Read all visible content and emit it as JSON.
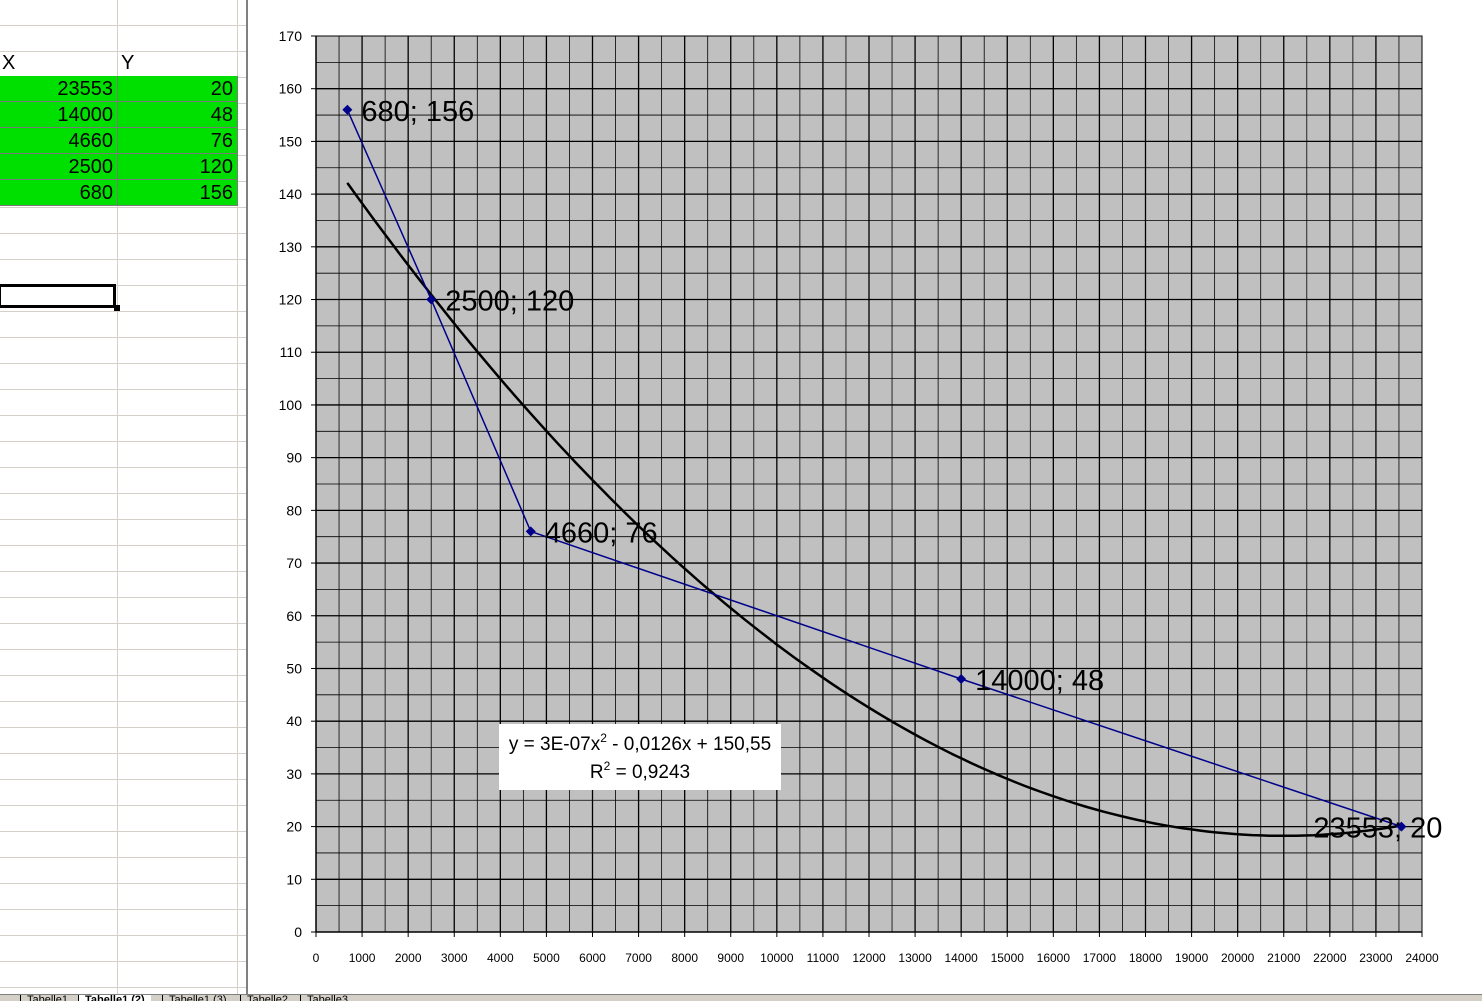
{
  "sheet": {
    "col_x_header": "X",
    "col_y_header": "Y",
    "rows": [
      {
        "x": "23553",
        "y": "20"
      },
      {
        "x": "14000",
        "y": "48"
      },
      {
        "x": "4660",
        "y": "76"
      },
      {
        "x": "2500",
        "y": "120"
      },
      {
        "x": "680",
        "y": "156"
      }
    ],
    "cell_color": "#00e000"
  },
  "tabs": [
    "Tabelle1",
    "Tabelle1 (2)",
    "Tabelle1 (3)",
    "Tabelle2",
    "Tabelle3"
  ],
  "chart_data": {
    "type": "scatter",
    "xlim": [
      0,
      24000
    ],
    "ylim": [
      0,
      170
    ],
    "x_ticks": [
      0,
      1000,
      2000,
      3000,
      4000,
      5000,
      6000,
      7000,
      8000,
      9000,
      10000,
      11000,
      12000,
      13000,
      14000,
      15000,
      16000,
      17000,
      18000,
      19000,
      20000,
      21000,
      22000,
      23000,
      24000
    ],
    "y_ticks": [
      0,
      10,
      20,
      30,
      40,
      50,
      60,
      70,
      80,
      90,
      100,
      110,
      120,
      130,
      140,
      150,
      160,
      170
    ],
    "grid": true,
    "plot_background": "#c0c0c0",
    "series": [
      {
        "color": "#00008b",
        "points": [
          {
            "x": 680,
            "y": 156,
            "label": "680; 156"
          },
          {
            "x": 2500,
            "y": 120,
            "label": "2500; 120"
          },
          {
            "x": 4660,
            "y": 76,
            "label": "4660; 76"
          },
          {
            "x": 14000,
            "y": 48,
            "label": "14000; 48"
          },
          {
            "x": 23553,
            "y": 20,
            "label": "23553; 20"
          }
        ]
      }
    ],
    "trendline": {
      "type": "polynomial",
      "color": "#000000",
      "coefficients": {
        "a": 3e-07,
        "b": -0.0126,
        "c": 150.55
      },
      "x_range": [
        680,
        23553
      ],
      "equation_prefix": "y = 3E-07x",
      "equation_suffix": " - 0,0126x + 150,55",
      "r2_label": "R",
      "r2_value": " = 0,9243",
      "superscript": "2"
    }
  }
}
